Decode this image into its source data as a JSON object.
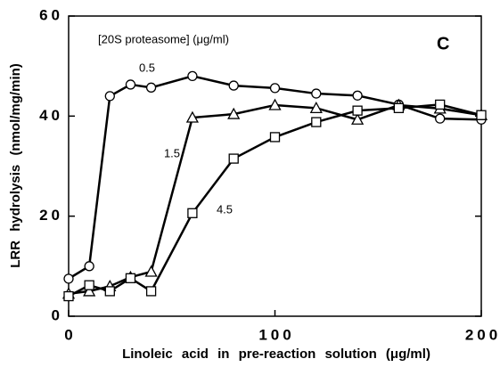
{
  "chart_data": {
    "type": "line",
    "x_label": "Linoleic acid in pre-reaction solution (μg/ml)",
    "y_label": "LRR hydrolysis (nmol/mg/min)",
    "annotations": [
      "[20S proteasome] (μg/ml)",
      "C"
    ],
    "x": [
      0,
      10,
      20,
      30,
      40,
      60,
      80,
      100,
      120,
      140,
      160,
      180,
      200
    ],
    "series": [
      {
        "name": "0.5",
        "marker": "circle",
        "color": "#000",
        "values": [
          7.5,
          10,
          44,
          46.3,
          45.7,
          48,
          46.1,
          45.6,
          44.5,
          44.1,
          42.3,
          39.5,
          39.3
        ]
      },
      {
        "name": "1.5",
        "marker": "triangle",
        "color": "#000",
        "values": [
          4.5,
          5,
          6,
          7.8,
          8.9,
          39.7,
          40.4,
          42.2,
          41.6,
          39.3,
          42.2,
          41.5,
          40.2
        ]
      },
      {
        "name": "4.5",
        "marker": "square",
        "color": "#000",
        "values": [
          4,
          6.2,
          5,
          7.6,
          5,
          20.6,
          31.5,
          35.8,
          38.8,
          41.1,
          41.6,
          42.3,
          40.2
        ]
      }
    ],
    "xlim": [
      0,
      200
    ],
    "xticks": [
      0,
      100,
      200
    ],
    "ylim": [
      0,
      60
    ],
    "yticks": [
      0,
      20,
      40,
      60
    ]
  }
}
